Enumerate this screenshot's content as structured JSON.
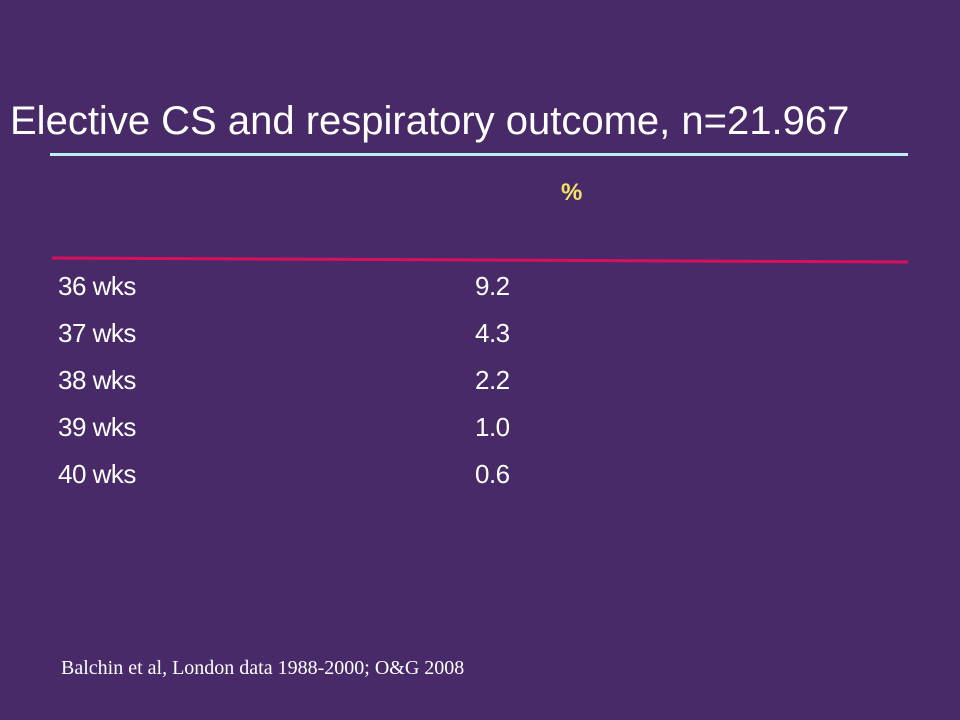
{
  "slide": {
    "title": "Elective CS and respiratory outcome, n=21.967",
    "column_header": "%",
    "citation": "Balchin et al, London data 1988-2000; O&G 2008",
    "colors": {
      "background": "#472a67",
      "title_rule": "#bdf0f5",
      "header_rule": "#d8105a",
      "header_text": "#f2e467",
      "text": "#ffffff"
    }
  },
  "table": {
    "rows": [
      {
        "label": "36 wks",
        "value": "9.2"
      },
      {
        "label": "37 wks",
        "value": "4.3"
      },
      {
        "label": "38 wks",
        "value": "2.2"
      },
      {
        "label": "39 wks",
        "value": "1.0"
      },
      {
        "label": "40 wks",
        "value": "0.6"
      }
    ]
  }
}
